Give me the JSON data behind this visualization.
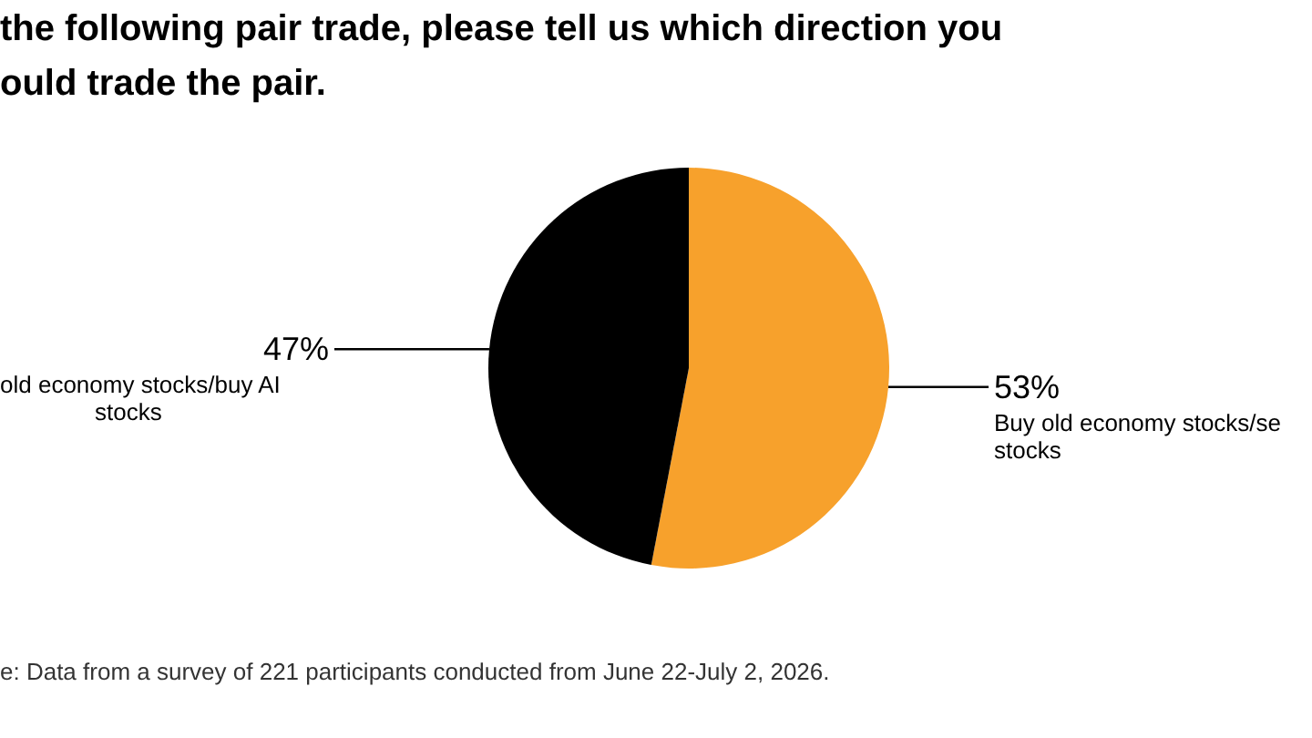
{
  "chart_data": {
    "type": "pie",
    "title": "the following pair trade, please tell us which direction you\nould trade the pair.",
    "categories": [
      "Buy old economy stocks/se stocks",
      "old economy stocks/buy AI stocks"
    ],
    "values": [
      53,
      47
    ],
    "colors": [
      "#f7a12c",
      "#000000"
    ],
    "value_labels": [
      "53%",
      "47%"
    ],
    "annotations": [
      "e: Data from a survey of 221 participants conducted from June 22-July 2, 2026."
    ]
  }
}
